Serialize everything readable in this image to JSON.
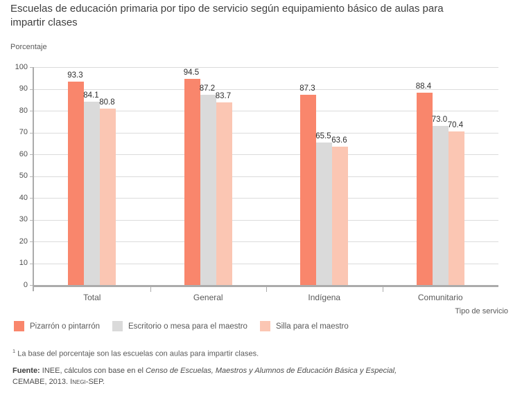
{
  "title": "Escuelas de educación primaria por tipo de servicio según equipamiento básico de aulas para impartir clases",
  "chart_data": {
    "type": "bar",
    "title": "Escuelas de educación primaria por tipo de servicio según equipamiento básico de aulas para impartir clases",
    "ylabel": "Porcentaje",
    "xlabel": "Tipo de servicio",
    "ylim": [
      0,
      100
    ],
    "yticks": [
      100,
      90,
      80,
      70,
      60,
      50,
      40,
      30,
      20,
      10,
      0
    ],
    "grid": true,
    "legend_position": "bottom",
    "categories": [
      "Total",
      "General",
      "Indígena",
      "Comunitario"
    ],
    "series": [
      {
        "name": "Pizarrón o pintarrón",
        "color": "#F9866C",
        "values": [
          93.3,
          94.5,
          87.3,
          88.4
        ]
      },
      {
        "name": "Escritorio o mesa para el maestro",
        "color": "#DADADA",
        "values": [
          84.1,
          87.2,
          65.5,
          73.0
        ]
      },
      {
        "name": "Silla para el maestro",
        "color": "#FBC6B3",
        "values": [
          80.8,
          83.7,
          63.6,
          70.4
        ]
      }
    ]
  },
  "footnote": {
    "marker": "1",
    "text": "La base del porcentaje son las escuelas con aulas para impartir clases."
  },
  "source": {
    "label": "Fuente:",
    "line1_regular": " INEE, cálculos con base en el ",
    "line1_italic": "Censo de Escuelas, Maestros y Alumnos de Educación Básica y Especial,",
    "line2_prefix": "CEMABE, 2013. ",
    "line2_smallcaps": "Inegi",
    "line2_suffix": "-SEP."
  },
  "colors": {
    "series_1": "#F9866C",
    "series_2": "#DADADA",
    "series_3": "#FBC6B3",
    "gridline": "#DBDBDB",
    "axis_line": "#ABABAB",
    "title_text": "#3E3E3E",
    "axis_text": "#595959"
  }
}
